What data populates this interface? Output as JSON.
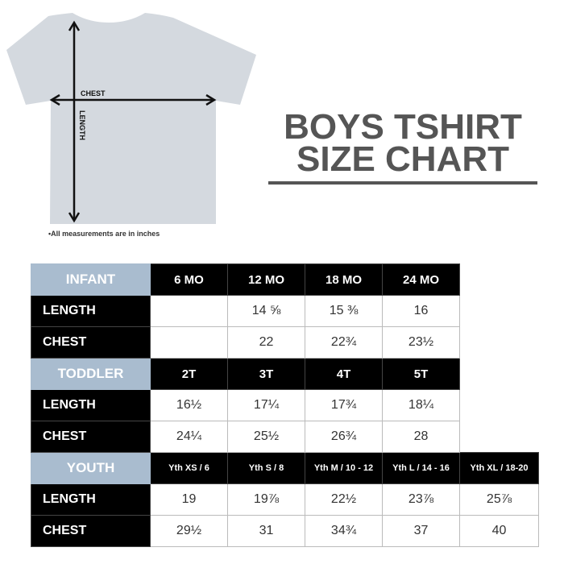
{
  "title": {
    "line1": "BOYS TSHIRT",
    "line2": "SIZE CHART"
  },
  "shirt": {
    "chest_label": "CHEST",
    "length_label": "LENGTH",
    "note": "•All measurements are in inches"
  },
  "sections": [
    {
      "name": "INFANT",
      "sizes": [
        "6 MO",
        "12 MO",
        "18 MO",
        "24 MO"
      ],
      "rows": [
        {
          "label": "LENGTH",
          "values": [
            "",
            "14 ⅝",
            "15 ⅜",
            "16"
          ]
        },
        {
          "label": "CHEST",
          "values": [
            "",
            "22",
            "22¾",
            "23½"
          ]
        }
      ]
    },
    {
      "name": "TODDLER",
      "sizes": [
        "2T",
        "3T",
        "4T",
        "5T"
      ],
      "rows": [
        {
          "label": "LENGTH",
          "values": [
            "16½",
            "17¼",
            "17¾",
            "18¼"
          ]
        },
        {
          "label": "CHEST",
          "values": [
            "24¼",
            "25½",
            "26¾",
            "28"
          ]
        }
      ]
    },
    {
      "name": "YOUTH",
      "sizes": [
        "Yth XS / 6",
        "Yth S / 8",
        "Yth M / 10 - 12",
        "Yth L / 14 - 16",
        "Yth XL / 18-20"
      ],
      "rows": [
        {
          "label": "LENGTH",
          "values": [
            "19",
            "19⅞",
            "22½",
            "23⅞",
            "25⅞"
          ]
        },
        {
          "label": "CHEST",
          "values": [
            "29½",
            "31",
            "34¾",
            "37",
            "40"
          ]
        }
      ]
    }
  ]
}
